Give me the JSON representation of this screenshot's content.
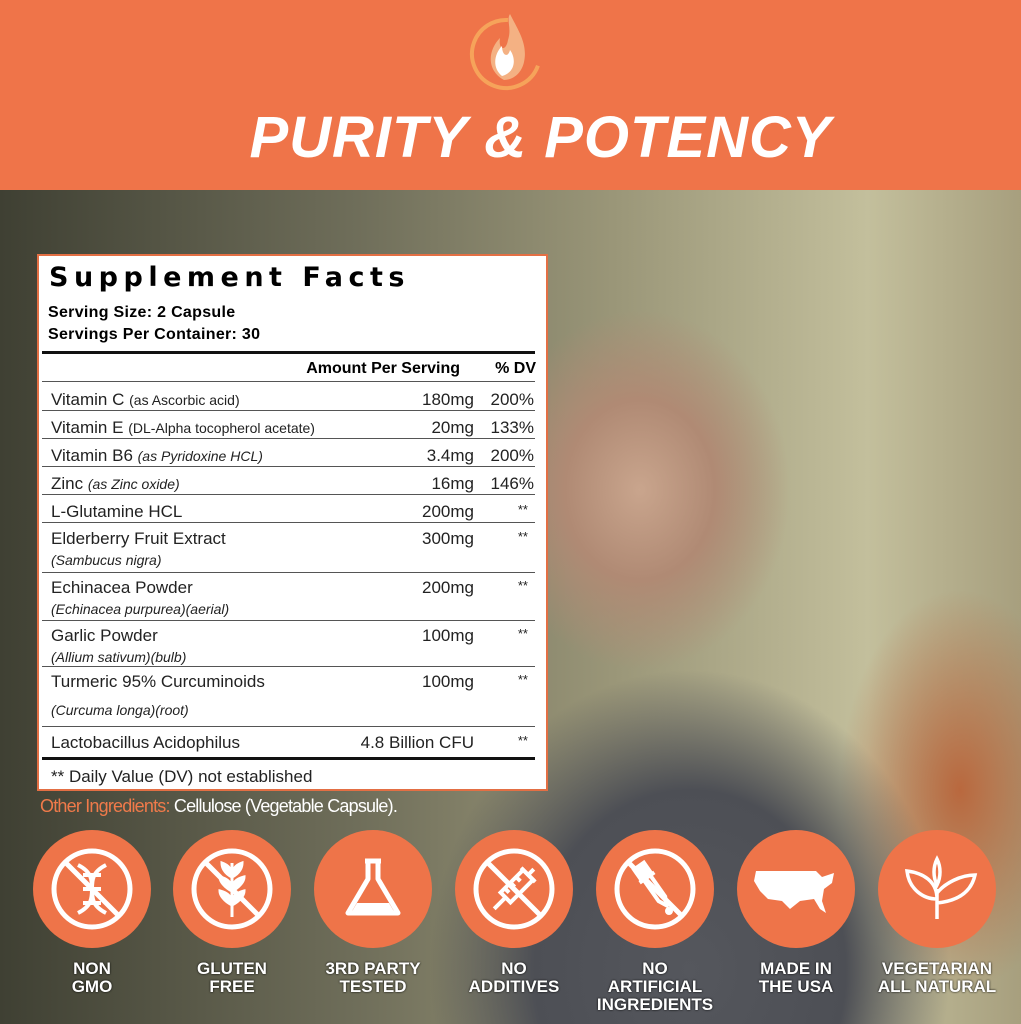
{
  "header": {
    "title": "PURITY & POTENCY",
    "logo": "flame-logo",
    "color": "#ef7449"
  },
  "facts": {
    "title": "Supplement Facts",
    "serving_size": "Serving Size: 2 Capsule",
    "servings_per_container": "Servings Per Container: 30",
    "col_amount": "Amount Per Serving",
    "col_dv": "% DV",
    "rows": [
      {
        "name": "Vitamin C",
        "source": "(as Ascorbic acid)",
        "amount": "180mg",
        "dv": "200%"
      },
      {
        "name": "Vitamin E",
        "source": "(DL-Alpha tocopherol acetate)",
        "amount": "20mg",
        "dv": "133%"
      },
      {
        "name": "Vitamin B6",
        "source": "(as Pyridoxine HCL)",
        "amount": "3.4mg",
        "dv": "200%"
      },
      {
        "name": "Zinc",
        "source": "(as Zinc oxide)",
        "amount": "16mg",
        "dv": "146%"
      },
      {
        "name": "L-Glutamine HCL",
        "source": "",
        "amount": "200mg",
        "dv": "**"
      },
      {
        "name": "Elderberry Fruit Extract",
        "source": "(Sambucus nigra)",
        "amount": "300mg",
        "dv": "**"
      },
      {
        "name": "Echinacea Powder",
        "source": "(Echinacea purpurea)(aerial)",
        "amount": "200mg",
        "dv": "**"
      },
      {
        "name": "Garlic Powder",
        "source": "(Allium sativum)(bulb)",
        "amount": "100mg",
        "dv": "**"
      },
      {
        "name": "Turmeric 95% Curcuminoids",
        "source": "(Curcuma longa)(root)",
        "amount": "100mg",
        "dv": "**"
      },
      {
        "name": "Lactobacillus Acidophilus",
        "source": "",
        "amount": "4.8 Billion CFU",
        "dv": "**"
      }
    ],
    "footnote": "** Daily Value (DV) not established"
  },
  "other_ingredients": {
    "label": "Other Ingredients:",
    "value": "Cellulose (Vegetable Capsule)."
  },
  "badges": [
    {
      "icon": "dna-crossed-icon",
      "line1": "NON",
      "line2": "GMO"
    },
    {
      "icon": "wheat-crossed-icon",
      "line1": "GLUTEN",
      "line2": "FREE"
    },
    {
      "icon": "flask-icon",
      "line1": "3RD PARTY",
      "line2": "TESTED"
    },
    {
      "icon": "syringe-crossed-icon",
      "line1": "NO",
      "line2": "ADDITIVES"
    },
    {
      "icon": "dropper-crossed-icon",
      "line1": "NO ARTIFICIAL",
      "line2": "INGREDIENTS"
    },
    {
      "icon": "usa-map-icon",
      "line1": "MADE IN",
      "line2": "THE USA"
    },
    {
      "icon": "leaf-icon",
      "line1": "VEGETARIAN",
      "line2": "ALL NATURAL"
    }
  ]
}
